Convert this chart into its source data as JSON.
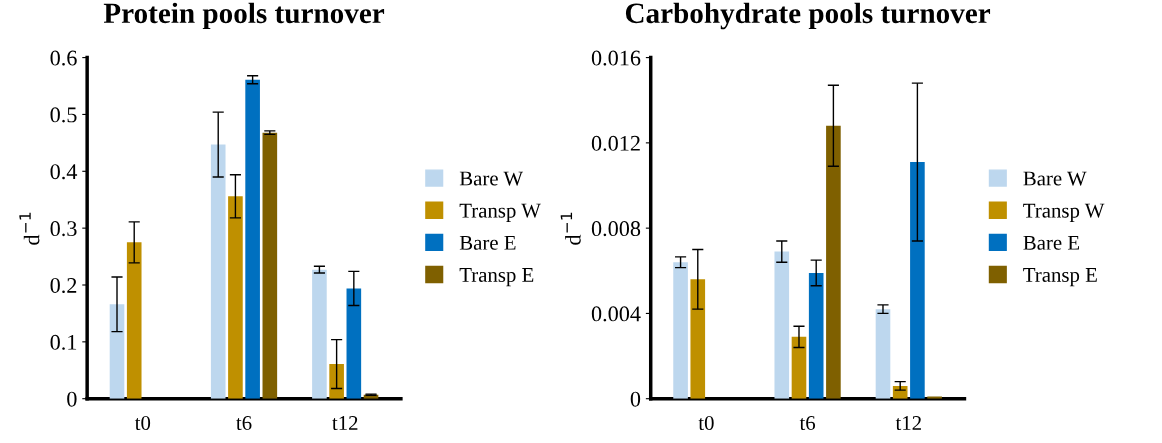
{
  "chart_data": [
    {
      "type": "bar",
      "title": "Protein pools turnover",
      "ylabel": "d$^{−1}$",
      "categories": [
        "t0",
        "t6",
        "t12"
      ],
      "ylim": [
        0,
        0.6
      ],
      "yticks": [
        0,
        0.1,
        0.2,
        0.3,
        0.4,
        0.5,
        0.6
      ],
      "grid": false,
      "legend": "right",
      "series": [
        {
          "name": "Bare W",
          "color": "#bdd7ee",
          "values": [
            0.166,
            0.447,
            0.227
          ],
          "errors": [
            0.048,
            0.057,
            0.006
          ]
        },
        {
          "name": "Transp W",
          "color": "#bf9000",
          "values": [
            0.275,
            0.356,
            0.061
          ],
          "errors": [
            0.036,
            0.038,
            0.043
          ]
        },
        {
          "name": "Bare E",
          "color": "#0070c0",
          "values": [
            null,
            0.561,
            0.194
          ],
          "errors": [
            null,
            0.007,
            0.03
          ]
        },
        {
          "name": "Transp E",
          "color": "#7f6000",
          "values": [
            null,
            0.468,
            0.007
          ],
          "errors": [
            null,
            0.003,
            0.001
          ]
        }
      ]
    },
    {
      "type": "bar",
      "title": "Carbohydrate pools turnover",
      "ylabel": "d$^{−1}$",
      "categories": [
        "t0",
        "t6",
        "t12"
      ],
      "ylim": [
        0,
        0.016
      ],
      "yticks": [
        0,
        {
          "value": 0.004,
          "label": "0.004"
        },
        {
          "value": 0.008,
          "label": "0.008"
        },
        {
          "value": 0.012,
          "label": "0.012"
        },
        {
          "value": 0.016,
          "label": "0.016"
        }
      ],
      "grid": false,
      "legend": "right",
      "series": [
        {
          "name": "Bare W",
          "color": "#bdd7ee",
          "values": [
            0.0064,
            0.0069,
            0.0042
          ],
          "errors": [
            0.00025,
            0.0005,
            0.0002
          ]
        },
        {
          "name": "Transp W",
          "color": "#bf9000",
          "values": [
            0.0056,
            0.0029,
            0.0006
          ],
          "errors": [
            0.0014,
            0.0005,
            0.0002
          ]
        },
        {
          "name": "Bare E",
          "color": "#0070c0",
          "values": [
            null,
            0.0059,
            0.0111
          ],
          "errors": [
            null,
            0.0006,
            0.0037
          ]
        },
        {
          "name": "Transp E",
          "color": "#7f6000",
          "values": [
            null,
            0.0128,
            0.0001
          ],
          "errors": [
            null,
            0.0019,
            null
          ]
        }
      ]
    }
  ]
}
